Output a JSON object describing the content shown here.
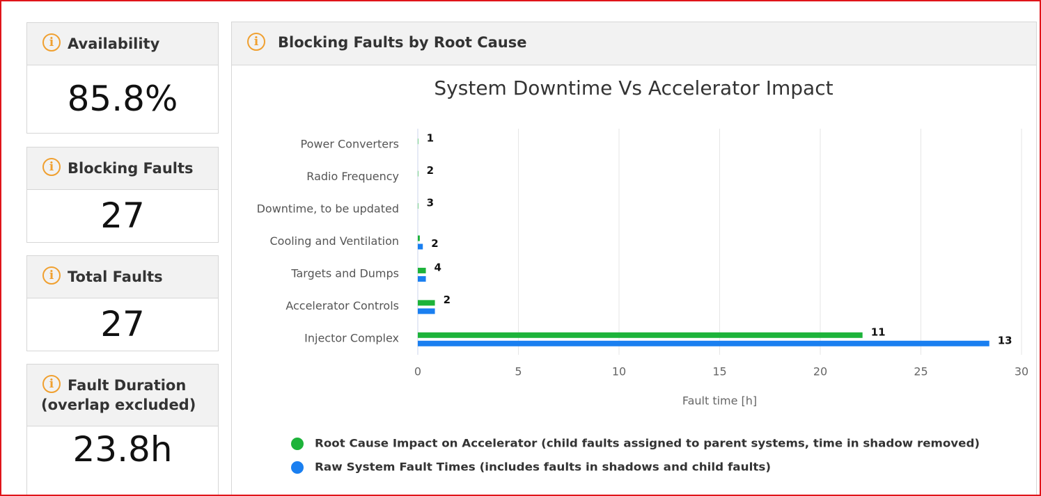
{
  "cards": [
    {
      "title": "Availability",
      "value": "85.8%"
    },
    {
      "title": "Blocking Faults",
      "value": "27"
    },
    {
      "title": "Total Faults",
      "value": "27"
    },
    {
      "title": "Fault Duration (overlap excluded)",
      "value": "23.8h"
    }
  ],
  "panel": {
    "title": "Blocking Faults by Root Cause"
  },
  "chart_data": {
    "type": "hbar",
    "title": "System Downtime Vs Accelerator Impact",
    "x_label": "Fault time [h]",
    "categories": [
      "Power Converters",
      "Radio Frequency",
      "Downtime, to be updated",
      "Cooling and Ventilation",
      "Targets and Dumps",
      "Accelerator Controls",
      "Injector Complex"
    ],
    "series": [
      {
        "name": "Root Cause Impact on Accelerator (child faults assigned to parent systems, time in shadow removed)",
        "color": "#1db33a",
        "values": [
          0.02,
          0.02,
          0.02,
          0.1,
          0.4,
          0.85,
          22.1
        ],
        "fault_counts": [
          1,
          2,
          3,
          null,
          4,
          2,
          11
        ]
      },
      {
        "name": "Raw System Fault Times (includes faults in shadows and child faults)",
        "color": "#1a7ff0",
        "values": [
          0,
          0,
          0,
          0.25,
          0.4,
          0.85,
          28.4
        ],
        "fault_counts": [
          null,
          null,
          null,
          2,
          null,
          null,
          13
        ]
      }
    ],
    "xlim": [
      0,
      30
    ],
    "xticks": [
      0,
      5,
      10,
      15,
      20,
      25,
      30
    ],
    "grid": true,
    "legend": "bottom"
  }
}
